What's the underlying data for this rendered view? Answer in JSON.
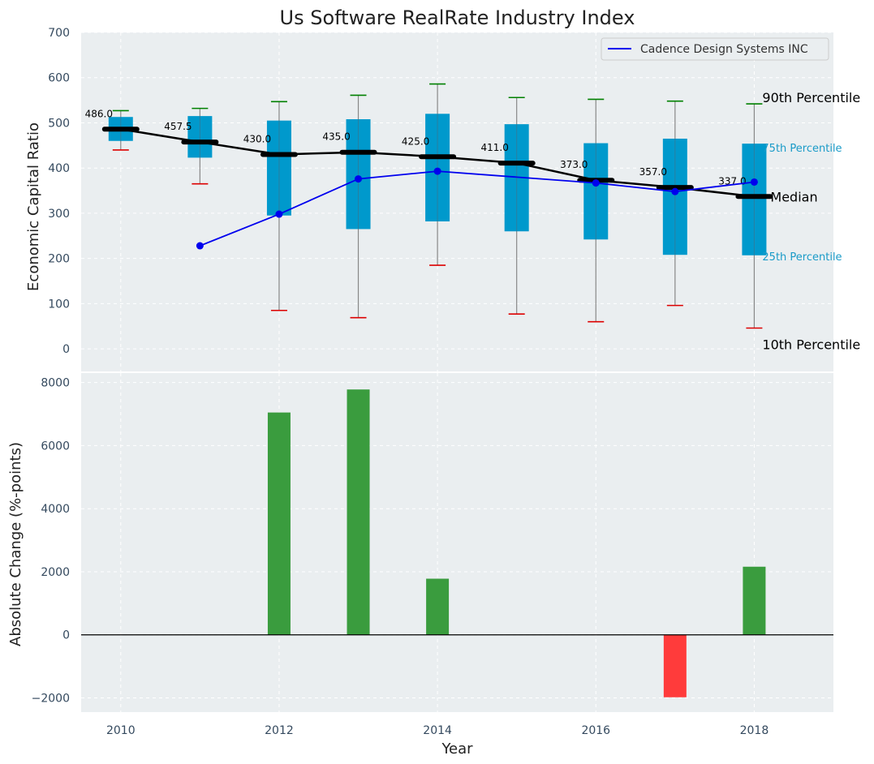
{
  "chart_data": [
    {
      "type": "box",
      "title": "Us Software RealRate Industry Index",
      "xlabel": "",
      "ylabel": "Economic Capital Ratio",
      "ylim": [
        -50,
        700
      ],
      "yticks": [
        0,
        100,
        200,
        300,
        400,
        500,
        600,
        700
      ],
      "grid": true,
      "legend_position": "top-right",
      "colors": {
        "box": "#0099cc",
        "median": "#000000",
        "whisker": "#888888",
        "p90_cap": "#008000",
        "p10_cap": "#dd0000",
        "company": "#0000ee",
        "background": "#eaeef0"
      },
      "boxes": [
        {
          "year": 2010,
          "p10": 440,
          "p25": 460,
          "median": 486.0,
          "p75": 513,
          "p90": 527,
          "median_label": "486.0"
        },
        {
          "year": 2011,
          "p10": 365,
          "p25": 423,
          "median": 457.5,
          "p75": 515,
          "p90": 532,
          "median_label": "457.5"
        },
        {
          "year": 2012,
          "p10": 85,
          "p25": 295,
          "median": 430.0,
          "p75": 505,
          "p90": 547,
          "median_label": "430.0"
        },
        {
          "year": 2013,
          "p10": 69,
          "p25": 265,
          "median": 435.0,
          "p75": 508,
          "p90": 561,
          "median_label": "435.0"
        },
        {
          "year": 2014,
          "p10": 185,
          "p25": 282,
          "median": 425.0,
          "p75": 520,
          "p90": 586,
          "median_label": "425.0"
        },
        {
          "year": 2015,
          "p10": 77,
          "p25": 260,
          "median": 411.0,
          "p75": 497,
          "p90": 556,
          "median_label": "411.0"
        },
        {
          "year": 2016,
          "p10": 60,
          "p25": 242,
          "median": 373.0,
          "p75": 455,
          "p90": 552,
          "median_label": "373.0"
        },
        {
          "year": 2017,
          "p10": 96,
          "p25": 208,
          "median": 357.0,
          "p75": 465,
          "p90": 548,
          "median_label": "357.0"
        },
        {
          "year": 2018,
          "p10": 46,
          "p25": 207,
          "median": 337.0,
          "p75": 454,
          "p90": 542,
          "median_label": "337.0"
        }
      ],
      "series": [
        {
          "name": "Cadence Design Systems INC",
          "x": [
            2011,
            2012,
            2013,
            2014,
            2016,
            2017,
            2018
          ],
          "values": [
            228,
            298,
            376,
            393,
            367,
            348,
            369
          ]
        }
      ],
      "percentile_labels": {
        "p90": "90th Percentile",
        "p75": "75th Percentile",
        "median": "Median",
        "p25": "25th Percentile",
        "p10": "10th Percentile"
      }
    },
    {
      "type": "bar",
      "xlabel": "Year",
      "ylabel": "Absolute Change (%-points)",
      "xlim": [
        2009.5,
        2019
      ],
      "xticks": [
        2010,
        2012,
        2014,
        2016,
        2018
      ],
      "ylim": [
        -2450,
        8300
      ],
      "yticks": [
        -2000,
        0,
        2000,
        4000,
        6000,
        8000
      ],
      "ytick_labels": [
        "−2000",
        "0",
        "2000",
        "4000",
        "6000",
        "8000"
      ],
      "grid": true,
      "colors": {
        "positive": "#3a9c3e",
        "negative": "#ff3b3b",
        "zero_line": "#000000"
      },
      "x": [
        2012,
        2013,
        2014,
        2017,
        2018
      ],
      "values": [
        7050,
        7780,
        1780,
        -1980,
        2160
      ]
    }
  ]
}
